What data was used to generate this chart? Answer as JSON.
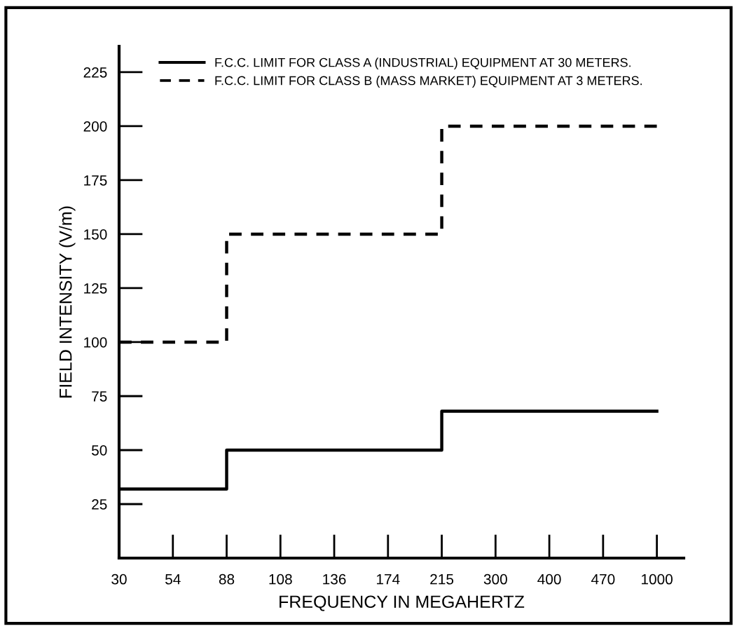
{
  "chart_data": {
    "type": "step",
    "xlabel": "FREQUENCY IN MEGAHERTZ",
    "ylabel": "FIELD INTENSITY (V/m)",
    "categories": [
      "30",
      "54",
      "88",
      "108",
      "136",
      "174",
      "215",
      "300",
      "400",
      "470",
      "1000"
    ],
    "series": [
      {
        "name": "F.C.C. LIMIT FOR CLASS A (INDUSTRIAL) EQUIPMENT AT 30 METERS.",
        "color": "#000000",
        "line_style": "solid",
        "values": [
          32,
          32,
          50,
          50,
          50,
          50,
          68,
          68,
          68,
          68,
          68
        ]
      },
      {
        "name": "F.C.C. LIMIT FOR CLASS B (MASS MARKET) EQUIPMENT AT 3 METERS.",
        "color": "#000000",
        "line_style": "dashed",
        "values": [
          100,
          100,
          150,
          150,
          150,
          150,
          200,
          200,
          200,
          200,
          200
        ]
      }
    ],
    "ylim": [
      0,
      237
    ],
    "yticks": [
      25,
      50,
      75,
      100,
      125,
      150,
      175,
      200,
      225
    ],
    "grid": false,
    "legend": "top",
    "marker": "none"
  }
}
